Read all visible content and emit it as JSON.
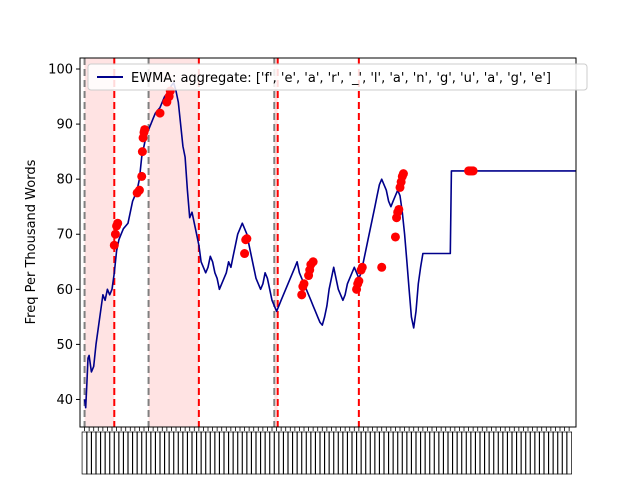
{
  "chart_data": {
    "type": "line",
    "title": "",
    "xlabel": "",
    "ylabel": "Freq Per Thousand Words",
    "xlim": [
      -2,
      215
    ],
    "ylim": [
      35,
      102
    ],
    "yticks": [
      40,
      50,
      60,
      70,
      80,
      90,
      100
    ],
    "x_tick_labels": "dense, unreadable overlapping rotated labels",
    "grid": false,
    "legend": {
      "location": "top-right"
    },
    "series": [
      {
        "name": "EWMA: aggregate: ['f', 'e', 'a', 'r', '_', 'l', 'a', 'n', 'g', 'u', 'a', 'g', 'e']",
        "color": "#00008b",
        "points": [
          [
            0,
            40
          ],
          [
            0.5,
            38.5
          ],
          [
            1,
            43
          ],
          [
            1.5,
            47.5
          ],
          [
            2,
            48
          ],
          [
            3,
            45
          ],
          [
            4,
            46
          ],
          [
            5,
            50
          ],
          [
            6,
            53
          ],
          [
            7,
            56
          ],
          [
            8,
            59
          ],
          [
            9,
            58
          ],
          [
            10,
            60
          ],
          [
            11,
            59
          ],
          [
            12,
            60
          ],
          [
            13,
            63
          ],
          [
            14,
            67
          ],
          [
            15,
            69
          ],
          [
            16,
            70
          ],
          [
            17,
            71
          ],
          [
            18,
            71.5
          ],
          [
            19,
            72
          ],
          [
            20,
            74
          ],
          [
            21,
            76
          ],
          [
            22,
            77
          ],
          [
            23,
            78
          ],
          [
            24,
            80
          ],
          [
            25,
            84
          ],
          [
            26,
            86
          ],
          [
            27,
            88
          ],
          [
            28,
            89
          ],
          [
            29,
            90
          ],
          [
            30,
            91
          ],
          [
            31,
            92
          ],
          [
            32,
            92.5
          ],
          [
            33,
            93
          ],
          [
            34,
            94
          ],
          [
            35,
            95
          ],
          [
            36,
            95.5
          ],
          [
            37,
            96
          ],
          [
            38,
            97
          ],
          [
            39,
            97.5
          ],
          [
            40,
            96
          ],
          [
            41,
            94
          ],
          [
            42,
            90
          ],
          [
            43,
            86
          ],
          [
            44,
            84
          ],
          [
            45,
            78
          ],
          [
            46,
            73
          ],
          [
            47,
            74
          ],
          [
            48,
            72
          ],
          [
            49,
            70
          ],
          [
            50,
            68
          ],
          [
            51,
            65
          ],
          [
            52,
            64
          ],
          [
            53,
            63
          ],
          [
            54,
            64
          ],
          [
            55,
            66
          ],
          [
            56,
            65
          ],
          [
            57,
            63
          ],
          [
            58,
            62
          ],
          [
            59,
            60
          ],
          [
            60,
            61
          ],
          [
            61,
            62
          ],
          [
            62,
            63
          ],
          [
            63,
            65
          ],
          [
            64,
            64
          ],
          [
            65,
            66
          ],
          [
            66,
            68
          ],
          [
            67,
            70
          ],
          [
            68,
            71
          ],
          [
            69,
            72
          ],
          [
            70,
            71
          ],
          [
            71,
            70
          ],
          [
            72,
            68
          ],
          [
            73,
            66
          ],
          [
            74,
            64
          ],
          [
            75,
            62
          ],
          [
            76,
            61
          ],
          [
            77,
            60
          ],
          [
            78,
            61
          ],
          [
            79,
            63
          ],
          [
            80,
            62
          ],
          [
            81,
            60
          ],
          [
            82,
            58
          ],
          [
            83,
            57
          ],
          [
            84,
            56
          ],
          [
            85,
            57
          ],
          [
            86,
            58
          ],
          [
            87,
            59
          ],
          [
            88,
            60
          ],
          [
            89,
            61
          ],
          [
            90,
            62
          ],
          [
            91,
            63
          ],
          [
            92,
            64
          ],
          [
            93,
            65
          ],
          [
            94,
            63
          ],
          [
            95,
            62
          ],
          [
            96,
            61
          ],
          [
            97,
            60
          ],
          [
            98,
            59
          ],
          [
            99,
            58
          ],
          [
            100,
            57
          ],
          [
            101,
            56
          ],
          [
            102,
            55
          ],
          [
            103,
            54
          ],
          [
            104,
            53.5
          ],
          [
            105,
            55
          ],
          [
            106,
            57
          ],
          [
            107,
            60
          ],
          [
            108,
            62
          ],
          [
            109,
            64
          ],
          [
            110,
            62
          ],
          [
            111,
            60
          ],
          [
            112,
            59
          ],
          [
            113,
            58
          ],
          [
            114,
            59
          ],
          [
            115,
            61
          ],
          [
            116,
            62
          ],
          [
            117,
            63
          ],
          [
            118,
            64
          ],
          [
            119,
            63
          ],
          [
            120,
            62
          ],
          [
            121,
            63
          ],
          [
            122,
            65
          ],
          [
            123,
            67
          ],
          [
            124,
            69
          ],
          [
            125,
            71
          ],
          [
            126,
            73
          ],
          [
            127,
            75
          ],
          [
            128,
            77
          ],
          [
            129,
            79
          ],
          [
            130,
            80
          ],
          [
            131,
            79
          ],
          [
            132,
            78
          ],
          [
            133,
            76
          ],
          [
            134,
            75
          ],
          [
            135,
            76
          ],
          [
            136,
            77
          ],
          [
            137,
            78
          ],
          [
            138,
            77
          ],
          [
            139,
            74
          ],
          [
            140,
            70
          ],
          [
            141,
            65
          ],
          [
            142,
            60
          ],
          [
            143,
            55
          ],
          [
            144,
            53
          ],
          [
            145,
            56
          ],
          [
            146,
            61
          ],
          [
            147,
            64
          ],
          [
            148,
            66.5
          ],
          [
            160,
            66.5
          ],
          [
            160.5,
            81.5
          ],
          [
            169,
            81.5
          ],
          [
            215,
            81.5
          ]
        ]
      }
    ],
    "markers": {
      "color": "#ff0000",
      "points": [
        [
          13,
          68
        ],
        [
          13.5,
          70
        ],
        [
          14,
          71.5
        ],
        [
          14.5,
          72
        ],
        [
          23,
          77.5
        ],
        [
          24,
          78
        ],
        [
          25,
          80.5
        ],
        [
          25.3,
          85
        ],
        [
          25.6,
          87.5
        ],
        [
          26,
          88.5
        ],
        [
          26.3,
          89
        ],
        [
          33,
          92
        ],
        [
          36,
          94
        ],
        [
          37,
          95
        ],
        [
          37.5,
          96
        ],
        [
          70,
          66.5
        ],
        [
          70.5,
          69
        ],
        [
          71,
          69.2
        ],
        [
          95,
          59
        ],
        [
          95.5,
          60.5
        ],
        [
          96,
          61
        ],
        [
          98,
          62.5
        ],
        [
          98.5,
          63.5
        ],
        [
          99,
          64.5
        ],
        [
          100,
          65
        ],
        [
          119,
          60
        ],
        [
          119.5,
          61
        ],
        [
          120,
          61.5
        ],
        [
          121,
          63.5
        ],
        [
          121.5,
          64
        ],
        [
          130,
          64
        ],
        [
          136,
          69.5
        ],
        [
          136.5,
          73
        ],
        [
          137,
          74
        ],
        [
          137.5,
          74.5
        ],
        [
          138,
          78.5
        ],
        [
          138.5,
          79.5
        ],
        [
          139,
          80.5
        ],
        [
          139.5,
          81
        ],
        [
          168,
          81.5
        ],
        [
          168.5,
          81.5
        ],
        [
          169,
          81.5
        ],
        [
          169.5,
          81.5
        ],
        [
          170,
          81.5
        ]
      ]
    },
    "regions": [
      {
        "from": 0,
        "to": 13,
        "fill": "#ffcccc",
        "left_line_color": "#808080",
        "right_line_color": "#ff0000"
      },
      {
        "from": 28,
        "to": 50,
        "fill": "#ffcccc",
        "left_line_color": "#808080",
        "right_line_color": "#ff0000"
      },
      {
        "from": 83,
        "to": 84.5,
        "fill": "#ffcccc",
        "left_line_color": "#808080",
        "right_line_color": "#ff0000"
      }
    ],
    "vlines": [
      {
        "x": 120,
        "color": "#ff0000"
      }
    ]
  }
}
